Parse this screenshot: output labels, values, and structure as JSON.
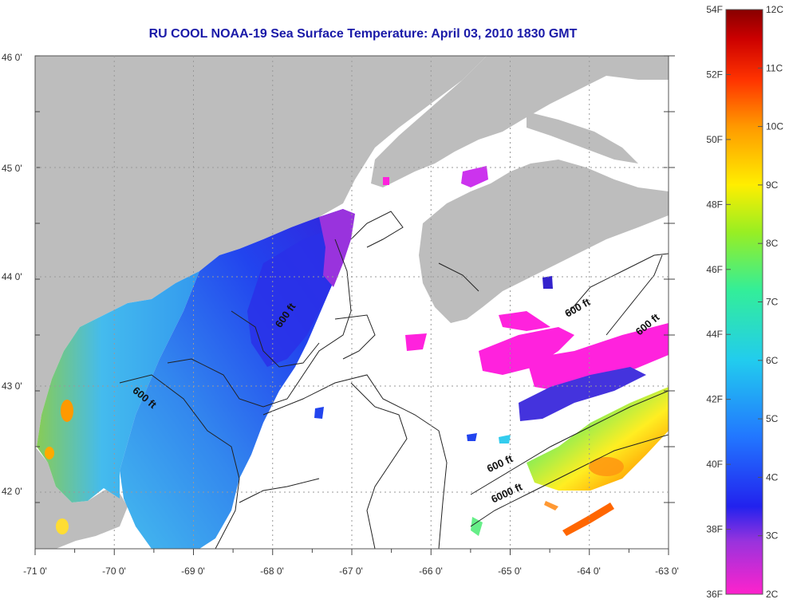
{
  "title": "RU COOL  NOAA-19  Sea Surface Temperature:  April 03, 2010 1830 GMT",
  "axes": {
    "lon_labels": [
      "-71 0'",
      "-70 0'",
      "-69 0'",
      "-68 0'",
      "-67 0'",
      "-66 0'",
      "-65 0'",
      "-64 0'",
      "-63 0'"
    ],
    "lat_labels": [
      "46 0'",
      "45 0'",
      "44 0'",
      "43 0'",
      "42 0'"
    ]
  },
  "contour_labels": [
    "600 ft",
    "600 ft",
    "600 ft",
    "600 ft",
    "600 ft",
    "6000 ft"
  ],
  "colorbar": {
    "fahrenheit_labels": [
      "54F",
      "52F",
      "50F",
      "48F",
      "46F",
      "44F",
      "42F",
      "40F",
      "38F",
      "36F"
    ],
    "celsius_labels": [
      "12C",
      "11C",
      "10C",
      "9C",
      "8C",
      "7C",
      "6C",
      "5C",
      "4C",
      "3C",
      "2C"
    ],
    "gradient": [
      "#ff22cc",
      "#9933dd",
      "#2222ee",
      "#2277ff",
      "#22ccee",
      "#33ee99",
      "#99ee22",
      "#ffee00",
      "#ff9900",
      "#ff3300",
      "#cc0000",
      "#880000"
    ]
  },
  "colors": {
    "land": "#bdbdbd",
    "ocean": "#ffffff",
    "sst_cold": "#2030e0",
    "sst_mid": "#30a0f0",
    "sst_magenta": "#ff22dd",
    "sst_warm": "#ffaa00"
  }
}
